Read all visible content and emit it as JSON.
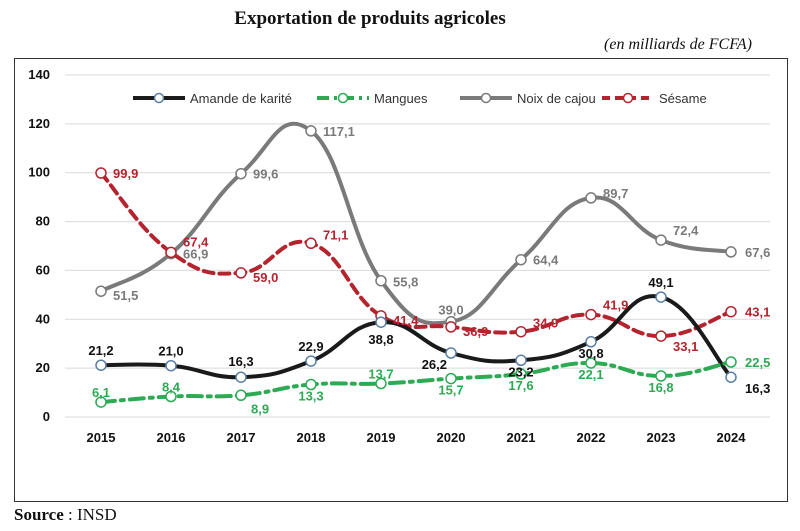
{
  "chart_data": {
    "type": "line",
    "title": "Exportation de produits agricoles",
    "subtitle": "(en milliards de FCFA)",
    "x": [
      "2015",
      "2016",
      "2017",
      "2018",
      "2019",
      "2020",
      "2021",
      "2022",
      "2023",
      "2024"
    ],
    "ylim": [
      0,
      140
    ],
    "yticks": [
      "0",
      "20",
      "40",
      "60",
      "80",
      "100",
      "120",
      "140"
    ],
    "grid": true,
    "legend": "top",
    "series": [
      {
        "name": "Amande de karité",
        "color": "#1a1a1a",
        "style": "solid",
        "values": [
          21.2,
          21.0,
          16.3,
          22.9,
          38.8,
          26.2,
          23.2,
          30.8,
          49.1,
          16.3
        ],
        "labels": [
          "21,2",
          "21,0",
          "16,3",
          "22,9",
          "38,8",
          "26,2",
          "23,2",
          "30,8",
          "49,1",
          "16,3"
        ]
      },
      {
        "name": "Mangues",
        "color": "#2eaa54",
        "style": "dashdot",
        "values": [
          6.1,
          8.4,
          8.9,
          13.3,
          13.7,
          15.7,
          17.6,
          22.1,
          16.8,
          22.5
        ],
        "labels": [
          "6,1",
          "8,4",
          "8,9",
          "13,3",
          "13,7",
          "15,7",
          "17,6",
          "22,1",
          "16,8",
          "22,5"
        ]
      },
      {
        "name": "Noix de cajou",
        "color": "#7a7a7a",
        "style": "solid",
        "values": [
          51.5,
          66.9,
          99.6,
          117.1,
          55.8,
          39.0,
          64.4,
          89.7,
          72.4,
          67.6
        ],
        "labels": [
          "51,5",
          "66,9",
          "99,6",
          "117,1",
          "55,8",
          "39,0",
          "64,4",
          "89,7",
          "72,4",
          "67,6"
        ]
      },
      {
        "name": "Sésame",
        "color": "#b5242e",
        "style": "dashed",
        "values": [
          99.9,
          67.4,
          59.0,
          71.1,
          41.4,
          36.9,
          34.9,
          41.9,
          33.1,
          43.1
        ],
        "labels": [
          "99,9",
          "67,4",
          "59,0",
          "71,1",
          "41,4",
          "36,9",
          "34,9",
          "41,9",
          "33,1",
          "43,1"
        ]
      }
    ]
  },
  "source": {
    "label": "Source",
    "sep": " : ",
    "value": "INSD"
  }
}
